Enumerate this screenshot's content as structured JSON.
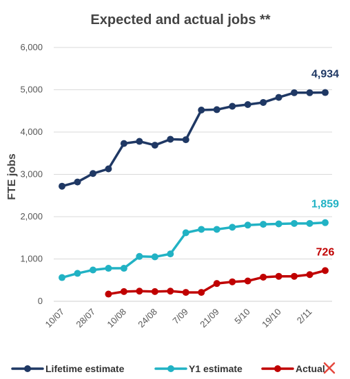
{
  "chart_data": {
    "type": "line",
    "title": "Expected and actual jobs **",
    "xlabel": "",
    "ylabel": "FTE jobs",
    "ylim": [
      0,
      6000
    ],
    "y_ticks": [
      "0",
      "1,000",
      "2,000",
      "3,000",
      "4,000",
      "5,000",
      "6,000"
    ],
    "x": [
      "10/07",
      "",
      "28/07",
      "",
      "10/08",
      "",
      "24/08",
      "",
      "7/09",
      "",
      "21/09",
      "",
      "5/10",
      "",
      "19/10",
      "",
      "2/11",
      ""
    ],
    "x_tick_labels": [
      "10/07",
      "28/07",
      "10/08",
      "24/08",
      "7/09",
      "21/09",
      "5/10",
      "19/10",
      "2/11"
    ],
    "grid": true,
    "legend_position": "bottom",
    "series": [
      {
        "name": "Lifetime estimate",
        "color": "#1f3864",
        "values": [
          2720,
          2820,
          3020,
          3130,
          3730,
          3780,
          3690,
          3830,
          3820,
          4520,
          4530,
          4610,
          4650,
          4700,
          4820,
          4930,
          4930,
          4934
        ],
        "end_label": "4,934"
      },
      {
        "name": "Y1 estimate",
        "color": "#21b2c4",
        "values": [
          560,
          660,
          740,
          780,
          780,
          1060,
          1050,
          1120,
          1620,
          1700,
          1700,
          1750,
          1800,
          1820,
          1830,
          1840,
          1840,
          1859
        ],
        "end_label": "1,859"
      },
      {
        "name": "Actual",
        "color": "#c00000",
        "values": [
          null,
          null,
          null,
          170,
          230,
          240,
          230,
          240,
          210,
          210,
          420,
          460,
          480,
          570,
          590,
          590,
          630,
          726
        ],
        "end_label": "726"
      }
    ]
  }
}
